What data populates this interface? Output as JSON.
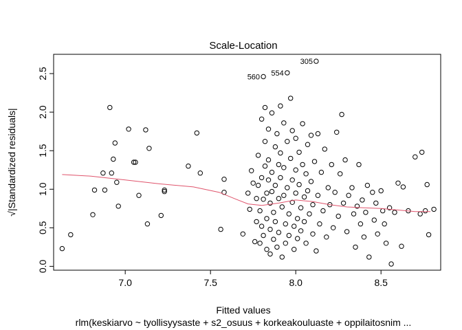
{
  "chart_data": {
    "type": "scatter",
    "title": "Scale-Location",
    "xlabel": "Fitted values",
    "ylabel": "√|Standardized residuals|",
    "subtitle": "rlm(keskiarvo ~ tyollisyysaste + s2_osuus + korkeakouluaste + oppilaitosnim ...",
    "xlim": [
      6.58,
      8.85
    ],
    "ylim": [
      -0.05,
      2.75
    ],
    "x_ticks": [
      7.0,
      7.5,
      8.0,
      8.5
    ],
    "x_tick_labels": [
      "7.0",
      "7.5",
      "8.0",
      "8.5"
    ],
    "y_ticks": [
      0.0,
      0.5,
      1.0,
      1.5,
      2.0,
      2.5
    ],
    "y_tick_labels": [
      "0.0",
      "0.5",
      "1.0",
      "1.5",
      "2.0",
      "2.5"
    ],
    "grid": false,
    "smooth_color": "#DF536B",
    "point_color": "#000000",
    "labeled_points": [
      {
        "label": "305",
        "x": 8.12,
        "y": 2.66
      },
      {
        "label": "554",
        "x": 7.95,
        "y": 2.51
      },
      {
        "label": "560",
        "x": 7.81,
        "y": 2.46
      }
    ],
    "smooth": [
      {
        "x": 6.63,
        "y": 1.19
      },
      {
        "x": 6.8,
        "y": 1.17
      },
      {
        "x": 7.0,
        "y": 1.12
      },
      {
        "x": 7.2,
        "y": 1.07
      },
      {
        "x": 7.4,
        "y": 1.03
      },
      {
        "x": 7.55,
        "y": 0.96
      },
      {
        "x": 7.65,
        "y": 0.87
      },
      {
        "x": 7.72,
        "y": 0.81
      },
      {
        "x": 7.8,
        "y": 0.79
      },
      {
        "x": 7.9,
        "y": 0.82
      },
      {
        "x": 8.0,
        "y": 0.86
      },
      {
        "x": 8.1,
        "y": 0.84
      },
      {
        "x": 8.2,
        "y": 0.8
      },
      {
        "x": 8.3,
        "y": 0.77
      },
      {
        "x": 8.4,
        "y": 0.76
      },
      {
        "x": 8.5,
        "y": 0.75
      },
      {
        "x": 8.6,
        "y": 0.73
      },
      {
        "x": 8.7,
        "y": 0.71
      },
      {
        "x": 8.79,
        "y": 0.71
      }
    ],
    "points": [
      [
        6.63,
        0.23
      ],
      [
        6.68,
        0.41
      ],
      [
        6.81,
        0.67
      ],
      [
        6.82,
        0.99
      ],
      [
        6.87,
        1.21
      ],
      [
        6.88,
        0.99
      ],
      [
        6.91,
        2.06
      ],
      [
        6.92,
        1.21
      ],
      [
        6.93,
        1.39
      ],
      [
        6.94,
        1.6
      ],
      [
        6.95,
        1.09
      ],
      [
        6.96,
        0.78
      ],
      [
        7.02,
        1.78
      ],
      [
        7.05,
        1.35
      ],
      [
        7.06,
        1.35
      ],
      [
        7.08,
        0.92
      ],
      [
        7.12,
        1.77
      ],
      [
        7.13,
        0.55
      ],
      [
        7.14,
        1.53
      ],
      [
        7.21,
        0.66
      ],
      [
        7.23,
        0.99
      ],
      [
        7.23,
        0.97
      ],
      [
        7.37,
        1.3
      ],
      [
        7.42,
        1.73
      ],
      [
        7.44,
        1.21
      ],
      [
        7.56,
        0.48
      ],
      [
        7.58,
        1.13
      ],
      [
        7.58,
        0.96
      ],
      [
        7.69,
        0.42
      ],
      [
        7.72,
        0.95
      ],
      [
        7.73,
        0.74
      ],
      [
        7.74,
        1.24
      ],
      [
        7.75,
        1.08
      ],
      [
        7.76,
        0.32
      ],
      [
        7.77,
        0.88
      ],
      [
        7.77,
        0.58
      ],
      [
        7.78,
        1.44
      ],
      [
        7.78,
        1.05
      ],
      [
        7.79,
        0.72
      ],
      [
        7.79,
        0.3
      ],
      [
        7.8,
        1.91
      ],
      [
        7.8,
        1.15
      ],
      [
        7.8,
        0.52
      ],
      [
        7.81,
        0.87
      ],
      [
        7.81,
        0.4
      ],
      [
        7.82,
        2.06
      ],
      [
        7.82,
        1.62
      ],
      [
        7.82,
        1.3
      ],
      [
        7.83,
        0.95
      ],
      [
        7.83,
        0.62
      ],
      [
        7.83,
        0.22
      ],
      [
        7.84,
        1.78
      ],
      [
        7.84,
        1.38
      ],
      [
        7.84,
        1.12
      ],
      [
        7.85,
        0.82
      ],
      [
        7.85,
        0.48
      ],
      [
        7.85,
        0.16
      ],
      [
        7.86,
        1.99
      ],
      [
        7.86,
        1.22
      ],
      [
        7.86,
        0.97
      ],
      [
        7.87,
        0.7
      ],
      [
        7.87,
        0.35
      ],
      [
        7.88,
        1.55
      ],
      [
        7.88,
        1.05
      ],
      [
        7.88,
        0.58
      ],
      [
        7.89,
        0.25
      ],
      [
        7.89,
        1.72
      ],
      [
        7.9,
        1.32
      ],
      [
        7.9,
        0.88
      ],
      [
        7.9,
        0.44
      ],
      [
        7.91,
        2.08
      ],
      [
        7.91,
        1.47
      ],
      [
        7.91,
        1.15
      ],
      [
        7.92,
        0.77
      ],
      [
        7.92,
        0.12
      ],
      [
        7.93,
        1.86
      ],
      [
        7.93,
        1.28
      ],
      [
        7.93,
        0.92
      ],
      [
        7.94,
        0.55
      ],
      [
        7.94,
        0.3
      ],
      [
        7.95,
        1.62
      ],
      [
        7.95,
        1.02
      ],
      [
        7.96,
        0.68
      ],
      [
        7.96,
        0.4
      ],
      [
        7.97,
        2.18
      ],
      [
        7.97,
        1.4
      ],
      [
        7.98,
        1.76
      ],
      [
        7.98,
        1.12
      ],
      [
        7.98,
        0.83
      ],
      [
        7.99,
        0.52
      ],
      [
        7.99,
        0.22
      ],
      [
        8.0,
        1.66
      ],
      [
        8.0,
        1.25
      ],
      [
        8.0,
        0.95
      ],
      [
        8.01,
        0.62
      ],
      [
        8.01,
        0.36
      ],
      [
        8.02,
        1.48
      ],
      [
        8.02,
        1.06
      ],
      [
        8.03,
        0.76
      ],
      [
        8.03,
        0.46
      ],
      [
        8.04,
        1.85
      ],
      [
        8.04,
        1.32
      ],
      [
        8.05,
        0.9
      ],
      [
        8.05,
        0.58
      ],
      [
        8.06,
        1.2
      ],
      [
        8.06,
        0.3
      ],
      [
        8.07,
        1.58
      ],
      [
        8.07,
        0.98
      ],
      [
        8.08,
        0.68
      ],
      [
        8.09,
        1.7
      ],
      [
        8.09,
        1.1
      ],
      [
        8.1,
        0.8
      ],
      [
        8.1,
        0.42
      ],
      [
        8.11,
        1.36
      ],
      [
        8.12,
        0.2
      ],
      [
        8.13,
        1.72
      ],
      [
        8.13,
        0.92
      ],
      [
        8.14,
        0.55
      ],
      [
        8.15,
        1.22
      ],
      [
        8.16,
        0.72
      ],
      [
        8.17,
        1.52
      ],
      [
        8.18,
        0.38
      ],
      [
        8.19,
        1.02
      ],
      [
        8.2,
        0.8
      ],
      [
        8.21,
        1.32
      ],
      [
        8.22,
        0.5
      ],
      [
        8.23,
        0.96
      ],
      [
        8.24,
        1.74
      ],
      [
        8.25,
        0.65
      ],
      [
        8.26,
        1.2
      ],
      [
        8.27,
        1.97
      ],
      [
        8.28,
        0.82
      ],
      [
        8.29,
        1.38
      ],
      [
        8.3,
        0.45
      ],
      [
        8.31,
        0.92
      ],
      [
        8.33,
        1.02
      ],
      [
        8.34,
        0.68
      ],
      [
        8.35,
        0.25
      ],
      [
        8.36,
        0.78
      ],
      [
        8.37,
        1.32
      ],
      [
        8.38,
        0.55
      ],
      [
        8.39,
        0.86
      ],
      [
        8.4,
        0.38
      ],
      [
        8.41,
        0.7
      ],
      [
        8.42,
        1.05
      ],
      [
        8.43,
        0.12
      ],
      [
        8.45,
        0.96
      ],
      [
        8.46,
        0.6
      ],
      [
        8.47,
        0.82
      ],
      [
        8.48,
        0.42
      ],
      [
        8.5,
        0.98
      ],
      [
        8.51,
        0.72
      ],
      [
        8.52,
        0.55
      ],
      [
        8.53,
        0.3
      ],
      [
        8.55,
        0.76
      ],
      [
        8.56,
        0.03
      ],
      [
        8.58,
        0.7
      ],
      [
        8.6,
        1.08
      ],
      [
        8.62,
        0.26
      ],
      [
        8.63,
        1.03
      ],
      [
        8.66,
        0.72
      ],
      [
        8.7,
        1.42
      ],
      [
        8.73,
        0.68
      ],
      [
        8.74,
        1.48
      ],
      [
        8.76,
        0.72
      ],
      [
        8.77,
        1.06
      ],
      [
        8.78,
        0.41
      ],
      [
        8.81,
        0.74
      ],
      [
        8.12,
        2.66
      ],
      [
        7.95,
        2.51
      ],
      [
        7.81,
        2.46
      ]
    ]
  }
}
